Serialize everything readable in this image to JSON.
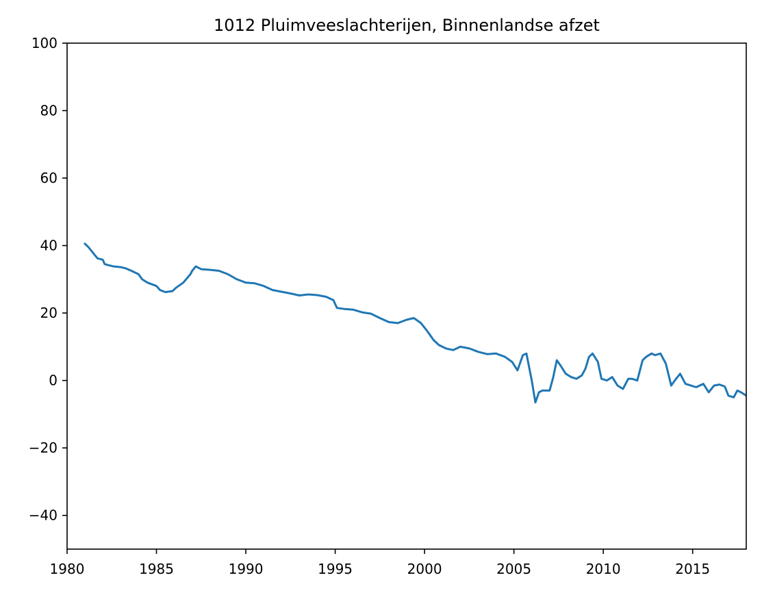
{
  "chart_data": {
    "type": "line",
    "title": "1012 Pluimveeslachterijen, Binnenlandse afzet",
    "xlabel": "",
    "ylabel": "",
    "xlim": [
      1980,
      2018
    ],
    "ylim": [
      -50,
      100
    ],
    "x_ticks": [
      1980,
      1985,
      1990,
      1995,
      2000,
      2005,
      2010,
      2015
    ],
    "x_tick_labels": [
      "1980",
      "1985",
      "1990",
      "1995",
      "2000",
      "2005",
      "2010",
      "2015"
    ],
    "y_ticks": [
      -40,
      -20,
      0,
      20,
      40,
      60,
      80,
      100
    ],
    "y_tick_labels": [
      "−40",
      "−20",
      "0",
      "20",
      "40",
      "60",
      "80",
      "100"
    ],
    "grid": false,
    "legend": "none",
    "series": [
      {
        "color": "#1f77b4",
        "x": [
          1981.0,
          1981.2,
          1981.5,
          1981.7,
          1982.0,
          1982.1,
          1982.3,
          1982.6,
          1983.0,
          1983.3,
          1983.6,
          1984.0,
          1984.2,
          1984.5,
          1985.0,
          1985.2,
          1985.5,
          1985.9,
          1986.1,
          1986.5,
          1986.9,
          1987.0,
          1987.2,
          1987.5,
          1988.0,
          1988.5,
          1989.0,
          1989.5,
          1990.0,
          1990.5,
          1991.0,
          1991.5,
          1992.0,
          1992.5,
          1993.0,
          1993.5,
          1994.0,
          1994.5,
          1994.9,
          1995.1,
          1995.5,
          1996.0,
          1996.5,
          1997.0,
          1997.5,
          1998.0,
          1998.5,
          1999.0,
          1999.4,
          1999.8,
          2000.1,
          2000.5,
          2000.8,
          2001.2,
          2001.6,
          2002.0,
          2002.5,
          2003.0,
          2003.5,
          2004.0,
          2004.5,
          2004.9,
          2005.2,
          2005.5,
          2005.7,
          2006.0,
          2006.2,
          2006.4,
          2006.6,
          2007.0,
          2007.2,
          2007.4,
          2007.6,
          2007.9,
          2008.2,
          2008.5,
          2008.8,
          2009.0,
          2009.2,
          2009.4,
          2009.7,
          2009.9,
          2010.2,
          2010.5,
          2010.8,
          2011.1,
          2011.4,
          2011.6,
          2011.9,
          2012.2,
          2012.4,
          2012.7,
          2012.9,
          2013.2,
          2013.5,
          2013.8,
          2014.0,
          2014.3,
          2014.6,
          2014.9,
          2015.2,
          2015.6,
          2015.9,
          2016.2,
          2016.5,
          2016.8,
          2017.0,
          2017.3,
          2017.5,
          2017.7,
          2018.0
        ],
        "y": [
          40.5,
          39.5,
          37.5,
          36.2,
          35.8,
          34.5,
          34.2,
          33.8,
          33.6,
          33.2,
          32.5,
          31.5,
          30.0,
          29.0,
          28.0,
          26.8,
          26.2,
          26.5,
          27.5,
          29.0,
          31.5,
          32.5,
          33.8,
          33.0,
          32.8,
          32.5,
          31.5,
          30.0,
          29.0,
          28.8,
          28.0,
          26.8,
          26.3,
          25.8,
          25.2,
          25.5,
          25.3,
          24.8,
          23.8,
          21.5,
          21.2,
          21.0,
          20.2,
          19.8,
          18.5,
          17.3,
          17.0,
          18.0,
          18.5,
          17.0,
          15.0,
          12.0,
          10.5,
          9.5,
          9.0,
          10.0,
          9.5,
          8.5,
          7.8,
          8.0,
          7.0,
          5.5,
          3.0,
          7.5,
          8.0,
          0.0,
          -6.5,
          -3.5,
          -3.0,
          -3.0,
          1.0,
          6.0,
          4.5,
          2.0,
          1.0,
          0.5,
          1.5,
          3.5,
          7.0,
          8.0,
          5.5,
          0.5,
          0.0,
          1.0,
          -1.5,
          -2.5,
          0.5,
          0.5,
          0.0,
          6.0,
          7.0,
          8.0,
          7.5,
          8.0,
          5.0,
          -1.5,
          0.0,
          2.0,
          -1.0,
          -1.5,
          -2.0,
          -1.0,
          -3.5,
          -1.5,
          -1.2,
          -1.8,
          -4.5,
          -5.0,
          -3.0,
          -3.5,
          -4.5
        ]
      }
    ]
  }
}
